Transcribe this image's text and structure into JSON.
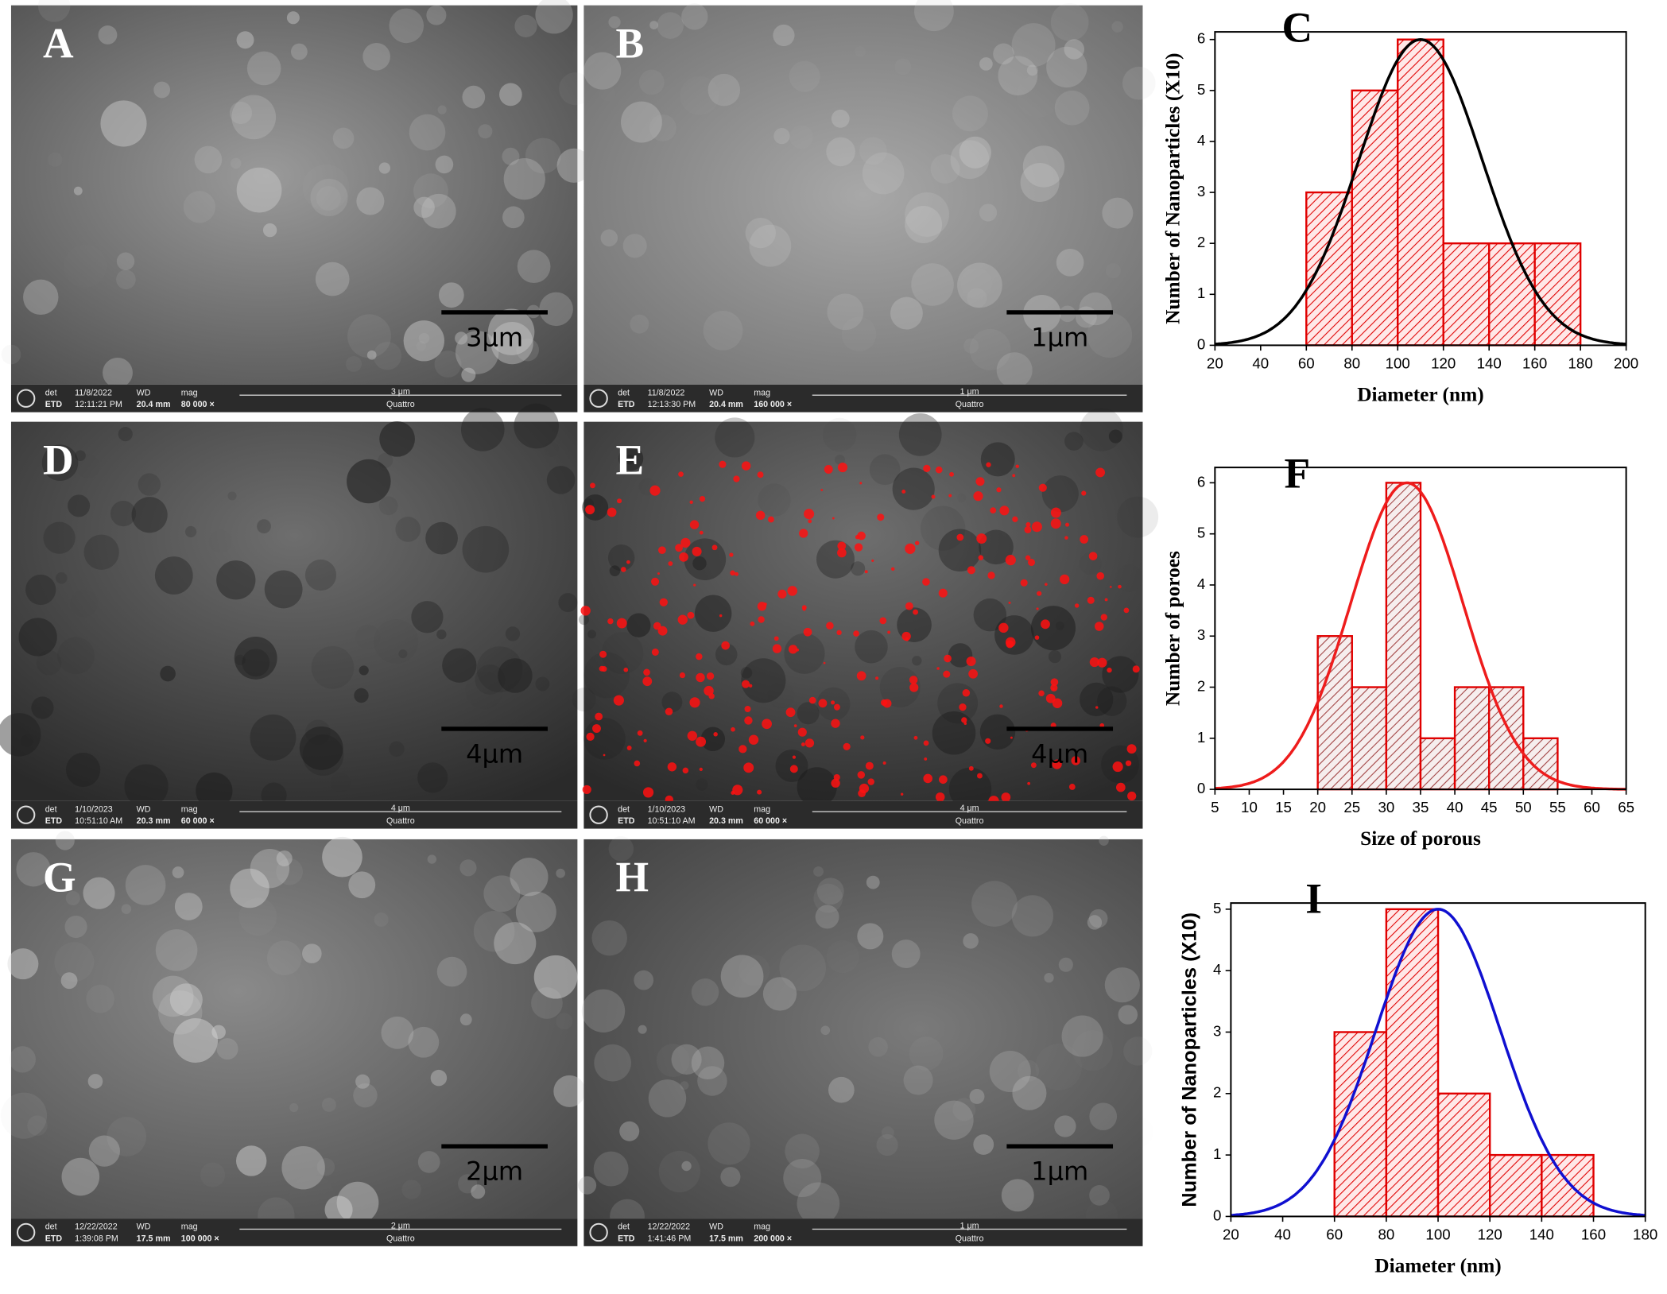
{
  "panels": [
    {
      "letter": "A",
      "det": "det",
      "detector": "ETD",
      "date": "11/8/2022",
      "time": "12:11:21 PM",
      "wd_label": "WD",
      "wd": "20.4 mm",
      "mag_label": "mag",
      "mag": "80 000 ×",
      "hfw": "3 μm",
      "instrument": "Quattro",
      "scale": "3μm"
    },
    {
      "letter": "B",
      "det": "det",
      "detector": "ETD",
      "date": "11/8/2022",
      "time": "12:13:30 PM",
      "wd_label": "WD",
      "wd": "20.4 mm",
      "mag_label": "mag",
      "mag": "160 000 ×",
      "hfw": "1 μm",
      "instrument": "Quattro",
      "scale": "1μm"
    },
    {
      "letter": "D",
      "det": "det",
      "detector": "ETD",
      "date": "1/10/2023",
      "time": "10:51:10 AM",
      "wd_label": "WD",
      "wd": "20.3 mm",
      "mag_label": "mag",
      "mag": "60 000 ×",
      "hfw": "4 μm",
      "instrument": "Quattro",
      "scale": "4μm"
    },
    {
      "letter": "E",
      "det": "det",
      "detector": "ETD",
      "date": "1/10/2023",
      "time": "10:51:10 AM",
      "wd_label": "WD",
      "wd": "20.3 mm",
      "mag_label": "mag",
      "mag": "60 000 ×",
      "hfw": "4 μm",
      "instrument": "Quattro",
      "scale": "4μm"
    },
    {
      "letter": "G",
      "det": "det",
      "detector": "ETD",
      "date": "12/22/2022",
      "time": "1:39:08 PM",
      "wd_label": "WD",
      "wd": "17.5 mm",
      "mag_label": "mag",
      "mag": "100 000 ×",
      "hfw": "2 μm",
      "instrument": "Quattro",
      "scale": "2μm"
    },
    {
      "letter": "H",
      "det": "det",
      "detector": "ETD",
      "date": "12/22/2022",
      "time": "1:41:46 PM",
      "wd_label": "WD",
      "wd": "17.5 mm",
      "mag_label": "mag",
      "mag": "200 000 ×",
      "hfw": "1 μm",
      "instrument": "Quattro",
      "scale": "1μm"
    }
  ],
  "chart_data": [
    {
      "type": "histogram",
      "panel": "C",
      "xlabel": "Diameter (nm)",
      "ylabel": "Number of Nanoparticles (X10)",
      "bins": [
        60,
        80,
        100,
        120,
        140,
        160,
        180
      ],
      "values": [
        3,
        5,
        6,
        2,
        2,
        2
      ],
      "color": "#e00000",
      "fit": {
        "mean": 110,
        "sd": 27,
        "height": 6,
        "color": "#000000"
      },
      "xlim": [
        20,
        200
      ],
      "xticks": [
        20,
        40,
        60,
        80,
        100,
        120,
        140,
        160,
        180,
        200
      ],
      "ylim": [
        0,
        6.15
      ],
      "yticks": [
        0,
        1,
        2,
        3,
        4,
        5,
        6
      ]
    },
    {
      "type": "histogram",
      "panel": "F",
      "xlabel": "Size of porous",
      "ylabel": "Number of poroes",
      "bins": [
        20,
        25,
        30,
        35,
        40,
        45,
        50,
        55
      ],
      "values": [
        3,
        2,
        6,
        1,
        2,
        2,
        1
      ],
      "color": "#e00000",
      "fit": {
        "mean": 33,
        "sd": 8.2,
        "height": 6,
        "color": "#ee1c1c"
      },
      "xlim": [
        5,
        65
      ],
      "xticks": [
        5,
        10,
        15,
        20,
        25,
        30,
        35,
        40,
        45,
        50,
        55,
        60,
        65
      ],
      "ylim": [
        0,
        6.3
      ],
      "yticks": [
        0,
        1,
        2,
        3,
        4,
        5,
        6
      ]
    },
    {
      "type": "histogram",
      "panel": "I",
      "xlabel": "Diameter (nm)",
      "ylabel": "Number of Nanoparticles (X10)",
      "bins": [
        60,
        80,
        100,
        120,
        140,
        160
      ],
      "values": [
        3,
        5,
        2,
        1,
        1
      ],
      "color": "#e00000",
      "fit": {
        "mean": 100,
        "sd": 24,
        "height": 5,
        "color": "#1010d0"
      },
      "xlim": [
        20,
        180
      ],
      "xticks": [
        20,
        40,
        60,
        80,
        100,
        120,
        140,
        160,
        180
      ],
      "ylim": [
        0,
        5.1
      ],
      "yticks": [
        0,
        1,
        2,
        3,
        4,
        5
      ]
    }
  ]
}
